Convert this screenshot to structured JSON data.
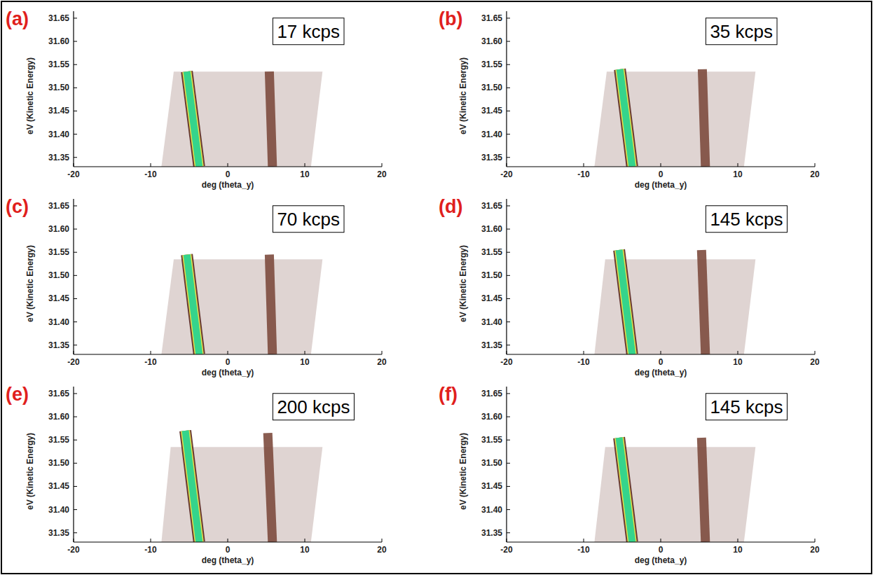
{
  "chart_data": [
    {
      "type": "line",
      "panel": "(a)",
      "annotation": "17 kcps",
      "xlabel": "deg (theta_y)",
      "ylabel": "eV (Kinetic Energy)",
      "xlim": [
        -20,
        20
      ],
      "xticks": [
        -20,
        -10,
        0,
        10,
        20
      ],
      "ylim": [
        31.33,
        31.665
      ],
      "yticks": [
        31.35,
        {
          "value": 31.4,
          "label": "31.40"
        },
        31.45,
        {
          "value": 31.5,
          "label": "31.50"
        },
        31.55,
        {
          "value": 31.6,
          "label": "31.60"
        },
        31.65
      ],
      "series": [
        {
          "type": "area",
          "color": "#d9cdca",
          "x": [
            -7,
            12.3,
            10.8,
            -8.6
          ],
          "values": [
            31.535,
            31.535,
            31.33,
            31.33
          ]
        },
        {
          "type": "line",
          "color": "#7d4b3e",
          "x": [
            5.4,
            5.8
          ],
          "values": [
            31.535,
            31.33
          ]
        },
        {
          "type": "line",
          "color": "#35d48c",
          "x": [
            -5.3,
            -3.7
          ],
          "values": [
            31.535,
            31.33
          ]
        }
      ]
    },
    {
      "type": "line",
      "panel": "(b)",
      "annotation": "35 kcps",
      "xlabel": "deg (theta_y)",
      "ylabel": "eV (Kinetic Energy)",
      "xlim": [
        -20,
        20
      ],
      "xticks": [
        -20,
        -10,
        0,
        10,
        20
      ],
      "ylim": [
        31.33,
        31.665
      ],
      "yticks": [
        31.35,
        {
          "value": 31.4,
          "label": "31.40"
        },
        31.45,
        {
          "value": 31.5,
          "label": "31.50"
        },
        31.55,
        {
          "value": 31.6,
          "label": "31.60"
        },
        31.65
      ],
      "series": [
        {
          "type": "area",
          "color": "#d9cdca",
          "x": [
            -7,
            12.3,
            10.8,
            -8.6
          ],
          "values": [
            31.535,
            31.535,
            31.33,
            31.33
          ]
        },
        {
          "type": "line",
          "color": "#7d4b3e",
          "x": [
            5.4,
            5.8
          ],
          "values": [
            31.54,
            31.33
          ]
        },
        {
          "type": "line",
          "color": "#35d48c",
          "x": [
            -5.3,
            -3.7
          ],
          "values": [
            31.54,
            31.33
          ]
        }
      ]
    },
    {
      "type": "line",
      "panel": "(c)",
      "annotation": "70 kcps",
      "xlabel": "deg (theta_y)",
      "ylabel": "eV (Kinetic Energy)",
      "xlim": [
        -20,
        20
      ],
      "xticks": [
        -20,
        -10,
        0,
        10,
        20
      ],
      "ylim": [
        31.33,
        31.665
      ],
      "yticks": [
        31.35,
        {
          "value": 31.4,
          "label": "31.40"
        },
        31.45,
        {
          "value": 31.5,
          "label": "31.50"
        },
        31.55,
        {
          "value": 31.6,
          "label": "31.60"
        },
        31.65
      ],
      "series": [
        {
          "type": "area",
          "color": "#d9cdca",
          "x": [
            -7,
            12.3,
            10.8,
            -8.6
          ],
          "values": [
            31.535,
            31.535,
            31.33,
            31.33
          ]
        },
        {
          "type": "line",
          "color": "#7d4b3e",
          "x": [
            5.4,
            5.8
          ],
          "values": [
            31.545,
            31.33
          ]
        },
        {
          "type": "line",
          "color": "#35d48c",
          "x": [
            -5.3,
            -3.7
          ],
          "values": [
            31.545,
            31.33
          ]
        }
      ]
    },
    {
      "type": "line",
      "panel": "(d)",
      "annotation": "145 kcps",
      "xlabel": "deg (theta_y)",
      "ylabel": "eV (Kinetic Energy)",
      "xlim": [
        -20,
        20
      ],
      "xticks": [
        -20,
        -10,
        0,
        10,
        20
      ],
      "ylim": [
        31.33,
        31.665
      ],
      "yticks": [
        31.35,
        {
          "value": 31.4,
          "label": "31.40"
        },
        31.45,
        {
          "value": 31.5,
          "label": "31.50"
        },
        31.55,
        {
          "value": 31.6,
          "label": "31.60"
        },
        31.65
      ],
      "series": [
        {
          "type": "area",
          "color": "#d9cdca",
          "x": [
            -7.2,
            12.3,
            10.8,
            -8.6
          ],
          "values": [
            31.535,
            31.535,
            31.33,
            31.33
          ]
        },
        {
          "type": "line",
          "color": "#7d4b3e",
          "x": [
            5.3,
            5.8
          ],
          "values": [
            31.555,
            31.33
          ]
        },
        {
          "type": "line",
          "color": "#35d48c",
          "x": [
            -5.4,
            -3.7
          ],
          "values": [
            31.555,
            31.33
          ]
        }
      ]
    },
    {
      "type": "line",
      "panel": "(e)",
      "annotation": "200 kcps",
      "xlabel": "deg (theta_y)",
      "ylabel": "eV (Kinetic Energy)",
      "xlim": [
        -20,
        20
      ],
      "xticks": [
        -20,
        -10,
        0,
        10,
        20
      ],
      "ylim": [
        31.33,
        31.665
      ],
      "yticks": [
        31.35,
        {
          "value": 31.4,
          "label": "31.40"
        },
        31.45,
        {
          "value": 31.5,
          "label": "31.50"
        },
        31.55,
        {
          "value": 31.6,
          "label": "31.60"
        },
        31.65
      ],
      "series": [
        {
          "type": "area",
          "color": "#d9cdca",
          "x": [
            -7.4,
            12.3,
            10.8,
            -8.6
          ],
          "values": [
            31.535,
            31.535,
            31.33,
            31.33
          ]
        },
        {
          "type": "line",
          "color": "#7d4b3e",
          "x": [
            5.2,
            5.8
          ],
          "values": [
            31.565,
            31.33
          ]
        },
        {
          "type": "line",
          "color": "#35d48c",
          "x": [
            -5.5,
            -3.7
          ],
          "values": [
            31.57,
            31.33
          ]
        }
      ]
    },
    {
      "type": "line",
      "panel": "(f)",
      "annotation": "145 kcps",
      "xlabel": "deg (theta_y)",
      "ylabel": "eV (Kinetic Energy)",
      "xlim": [
        -20,
        20
      ],
      "xticks": [
        -20,
        -10,
        0,
        10,
        20
      ],
      "ylim": [
        31.33,
        31.665
      ],
      "yticks": [
        31.35,
        {
          "value": 31.4,
          "label": "31.40"
        },
        31.45,
        {
          "value": 31.5,
          "label": "31.50"
        },
        31.55,
        {
          "value": 31.6,
          "label": "31.60"
        },
        31.65
      ],
      "series": [
        {
          "type": "area",
          "color": "#d9cdca",
          "x": [
            -7.2,
            12.3,
            10.8,
            -8.6
          ],
          "values": [
            31.535,
            31.535,
            31.33,
            31.33
          ]
        },
        {
          "type": "line",
          "color": "#7d4b3e",
          "x": [
            5.3,
            5.8
          ],
          "values": [
            31.555,
            31.33
          ]
        },
        {
          "type": "line",
          "color": "#35d48c",
          "x": [
            -5.4,
            -3.7
          ],
          "values": [
            31.555,
            31.33
          ]
        }
      ]
    }
  ]
}
